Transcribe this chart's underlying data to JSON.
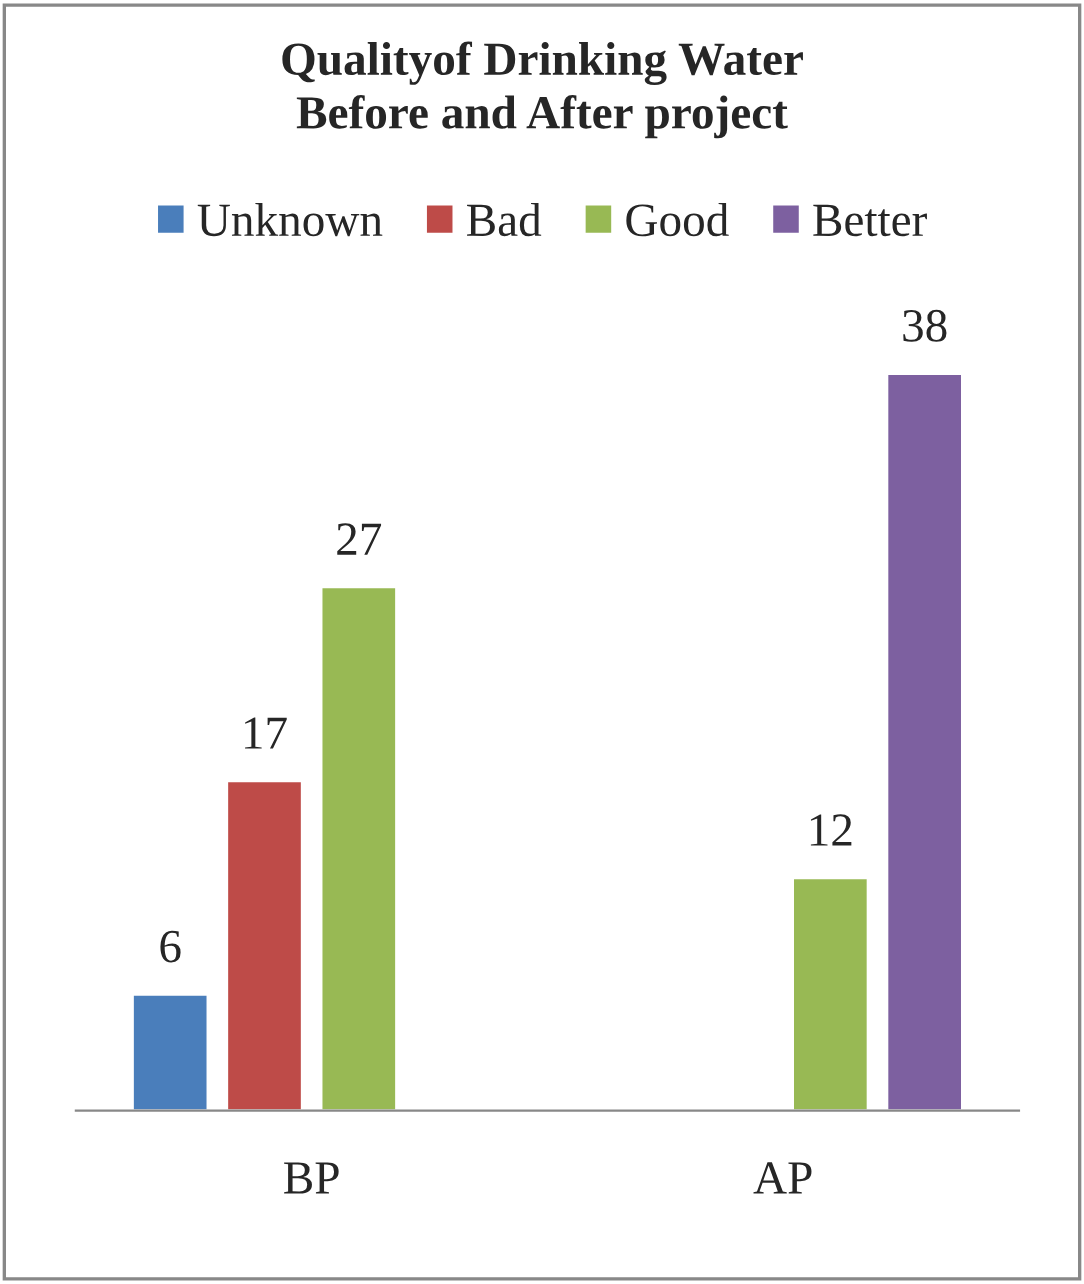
{
  "chart_data": {
    "type": "bar",
    "title": "Qualityof Drinking Water\nBefore and After project",
    "categories": [
      "BP",
      "AP"
    ],
    "series": [
      {
        "name": "Unknown",
        "color": "#4a7ebb",
        "values": [
          6,
          null
        ]
      },
      {
        "name": "Bad",
        "color": "#be4b48",
        "values": [
          17,
          null
        ]
      },
      {
        "name": "Good",
        "color": "#98b954",
        "values": [
          27,
          12
        ]
      },
      {
        "name": "Better",
        "color": "#7d60a0",
        "values": [
          null,
          38
        ]
      }
    ],
    "data_labels": true,
    "legend": "top",
    "grid": false,
    "tick_labels": "x"
  }
}
